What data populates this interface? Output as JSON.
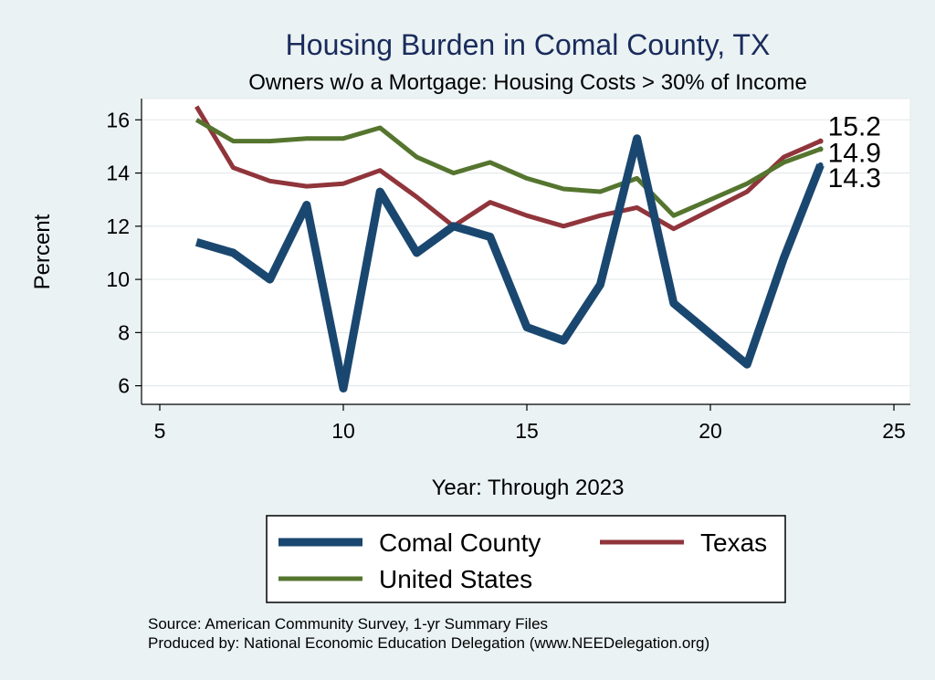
{
  "chart_data": {
    "type": "line",
    "title": "Housing Burden in Comal County, TX",
    "subtitle": "Owners w/o a Mortgage: Housing Costs > 30% of Income",
    "xlabel": "Year: Through 2023",
    "ylabel": "Percent",
    "xlim": [
      5,
      25
    ],
    "ylim": [
      5.3,
      16.8
    ],
    "x_ticks": [
      5,
      10,
      15,
      20,
      25
    ],
    "y_ticks": [
      6,
      8,
      10,
      12,
      14,
      16
    ],
    "grid": true,
    "legend_position": "bottom",
    "x": [
      6,
      7,
      8,
      9,
      10,
      11,
      12,
      13,
      14,
      15,
      16,
      17,
      18,
      19,
      21,
      22,
      23
    ],
    "series": [
      {
        "name": "Comal County",
        "color": "#1a476f",
        "values": [
          11.4,
          11.0,
          10.0,
          12.8,
          5.9,
          13.3,
          11.0,
          12.0,
          11.6,
          8.2,
          7.7,
          9.8,
          15.3,
          9.1,
          6.8,
          10.8,
          14.3
        ],
        "end_label": "14.3"
      },
      {
        "name": "Texas",
        "color": "#90353b",
        "values": [
          16.5,
          14.2,
          13.7,
          13.5,
          13.6,
          14.1,
          13.1,
          12.0,
          12.9,
          12.4,
          12.0,
          12.4,
          12.7,
          11.9,
          13.3,
          14.6,
          15.2
        ],
        "end_label": "15.2"
      },
      {
        "name": "United States",
        "color": "#55752f",
        "values": [
          16.0,
          15.2,
          15.2,
          15.3,
          15.3,
          15.7,
          14.6,
          14.0,
          14.4,
          13.8,
          13.4,
          13.3,
          13.8,
          12.4,
          13.6,
          14.4,
          14.9
        ],
        "end_label": "14.9"
      }
    ],
    "notes": [
      "Source: American Community Survey, 1-yr Summary Files",
      "Produced by: National Economic Education Delegation (www.NEEDelegation.org)"
    ]
  }
}
